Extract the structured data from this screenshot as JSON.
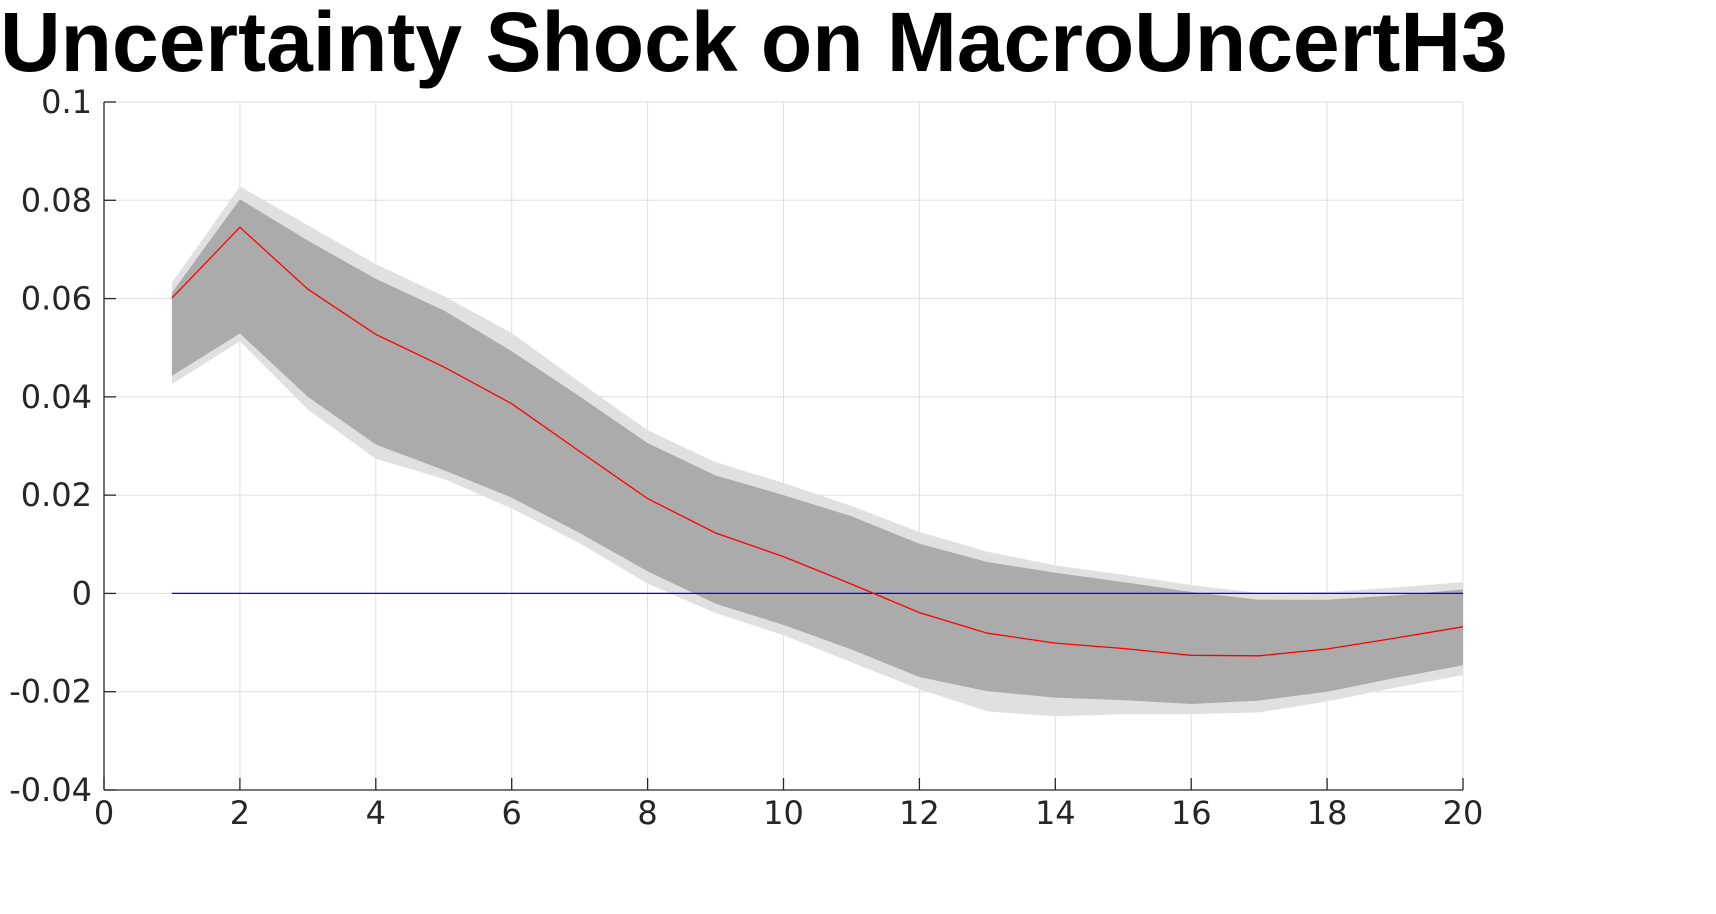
{
  "chart_data": {
    "type": "line",
    "title": "Uncertainty Shock on MacroUncertH3",
    "xlabel": "",
    "ylabel": "",
    "xlim": [
      0,
      20
    ],
    "ylim": [
      -0.04,
      0.1
    ],
    "xticks": [
      0,
      2,
      4,
      6,
      8,
      10,
      12,
      14,
      16,
      18,
      20
    ],
    "yticks": [
      -0.04,
      -0.02,
      0,
      0.02,
      0.04,
      0.06,
      0.08,
      0.1
    ],
    "xtick_labels": [
      "0",
      "2",
      "4",
      "6",
      "8",
      "10",
      "12",
      "14",
      "16",
      "18",
      "20"
    ],
    "ytick_labels": [
      "-0.04",
      "-0.02",
      "0",
      "0.02",
      "0.04",
      "0.06",
      "0.08",
      "0.1"
    ],
    "grid": true,
    "x": [
      1,
      2,
      3,
      4,
      5,
      6,
      7,
      8,
      9,
      10,
      11,
      12,
      13,
      14,
      15,
      16,
      17,
      18,
      19,
      20
    ],
    "series": [
      {
        "values": [
          0.0601,
          0.0745,
          0.0619,
          0.0527,
          0.0461,
          0.0386,
          0.0289,
          0.0193,
          0.0123,
          0.0075,
          0.0019,
          -0.0039,
          -0.0081,
          -0.0101,
          -0.0112,
          -0.0126,
          -0.0127,
          -0.0113,
          -0.0091,
          -0.0068
        ],
        "color": "#ff0000"
      },
      {
        "values": [
          0,
          0,
          0,
          0,
          0,
          0,
          0,
          0,
          0,
          0,
          0,
          0,
          0,
          0,
          0,
          0,
          0,
          0,
          0,
          0
        ],
        "color": "#0000ff"
      }
    ],
    "bands": [
      {
        "upper": [
          0.0632,
          0.0828,
          0.0749,
          0.067,
          0.0605,
          0.053,
          0.043,
          0.0332,
          0.0267,
          0.0225,
          0.0178,
          0.0125,
          0.0085,
          0.0057,
          0.0038,
          0.0017,
          0.0001,
          0.0003,
          0.0012,
          0.0023
        ],
        "lower": [
          0.0426,
          0.0513,
          0.0374,
          0.0274,
          0.0233,
          0.0173,
          0.0102,
          0.002,
          -0.004,
          -0.0085,
          -0.014,
          -0.0195,
          -0.024,
          -0.025,
          -0.0246,
          -0.0246,
          -0.0242,
          -0.022,
          -0.0192,
          -0.0166
        ],
        "color": "#e0e0e0"
      },
      {
        "upper": [
          0.0612,
          0.0802,
          0.0718,
          0.064,
          0.0576,
          0.0493,
          0.0401,
          0.0306,
          0.024,
          0.02,
          0.0157,
          0.0101,
          0.0064,
          0.0042,
          0.0023,
          0.0003,
          -0.0013,
          -0.0013,
          -0.0004,
          0.0008
        ],
        "lower": [
          0.0443,
          0.0529,
          0.04,
          0.0303,
          0.0251,
          0.0195,
          0.0123,
          0.0045,
          -0.0021,
          -0.0064,
          -0.0114,
          -0.017,
          -0.0199,
          -0.0212,
          -0.0217,
          -0.0225,
          -0.0218,
          -0.02,
          -0.0172,
          -0.0146
        ],
        "color": "#ababab"
      }
    ]
  }
}
